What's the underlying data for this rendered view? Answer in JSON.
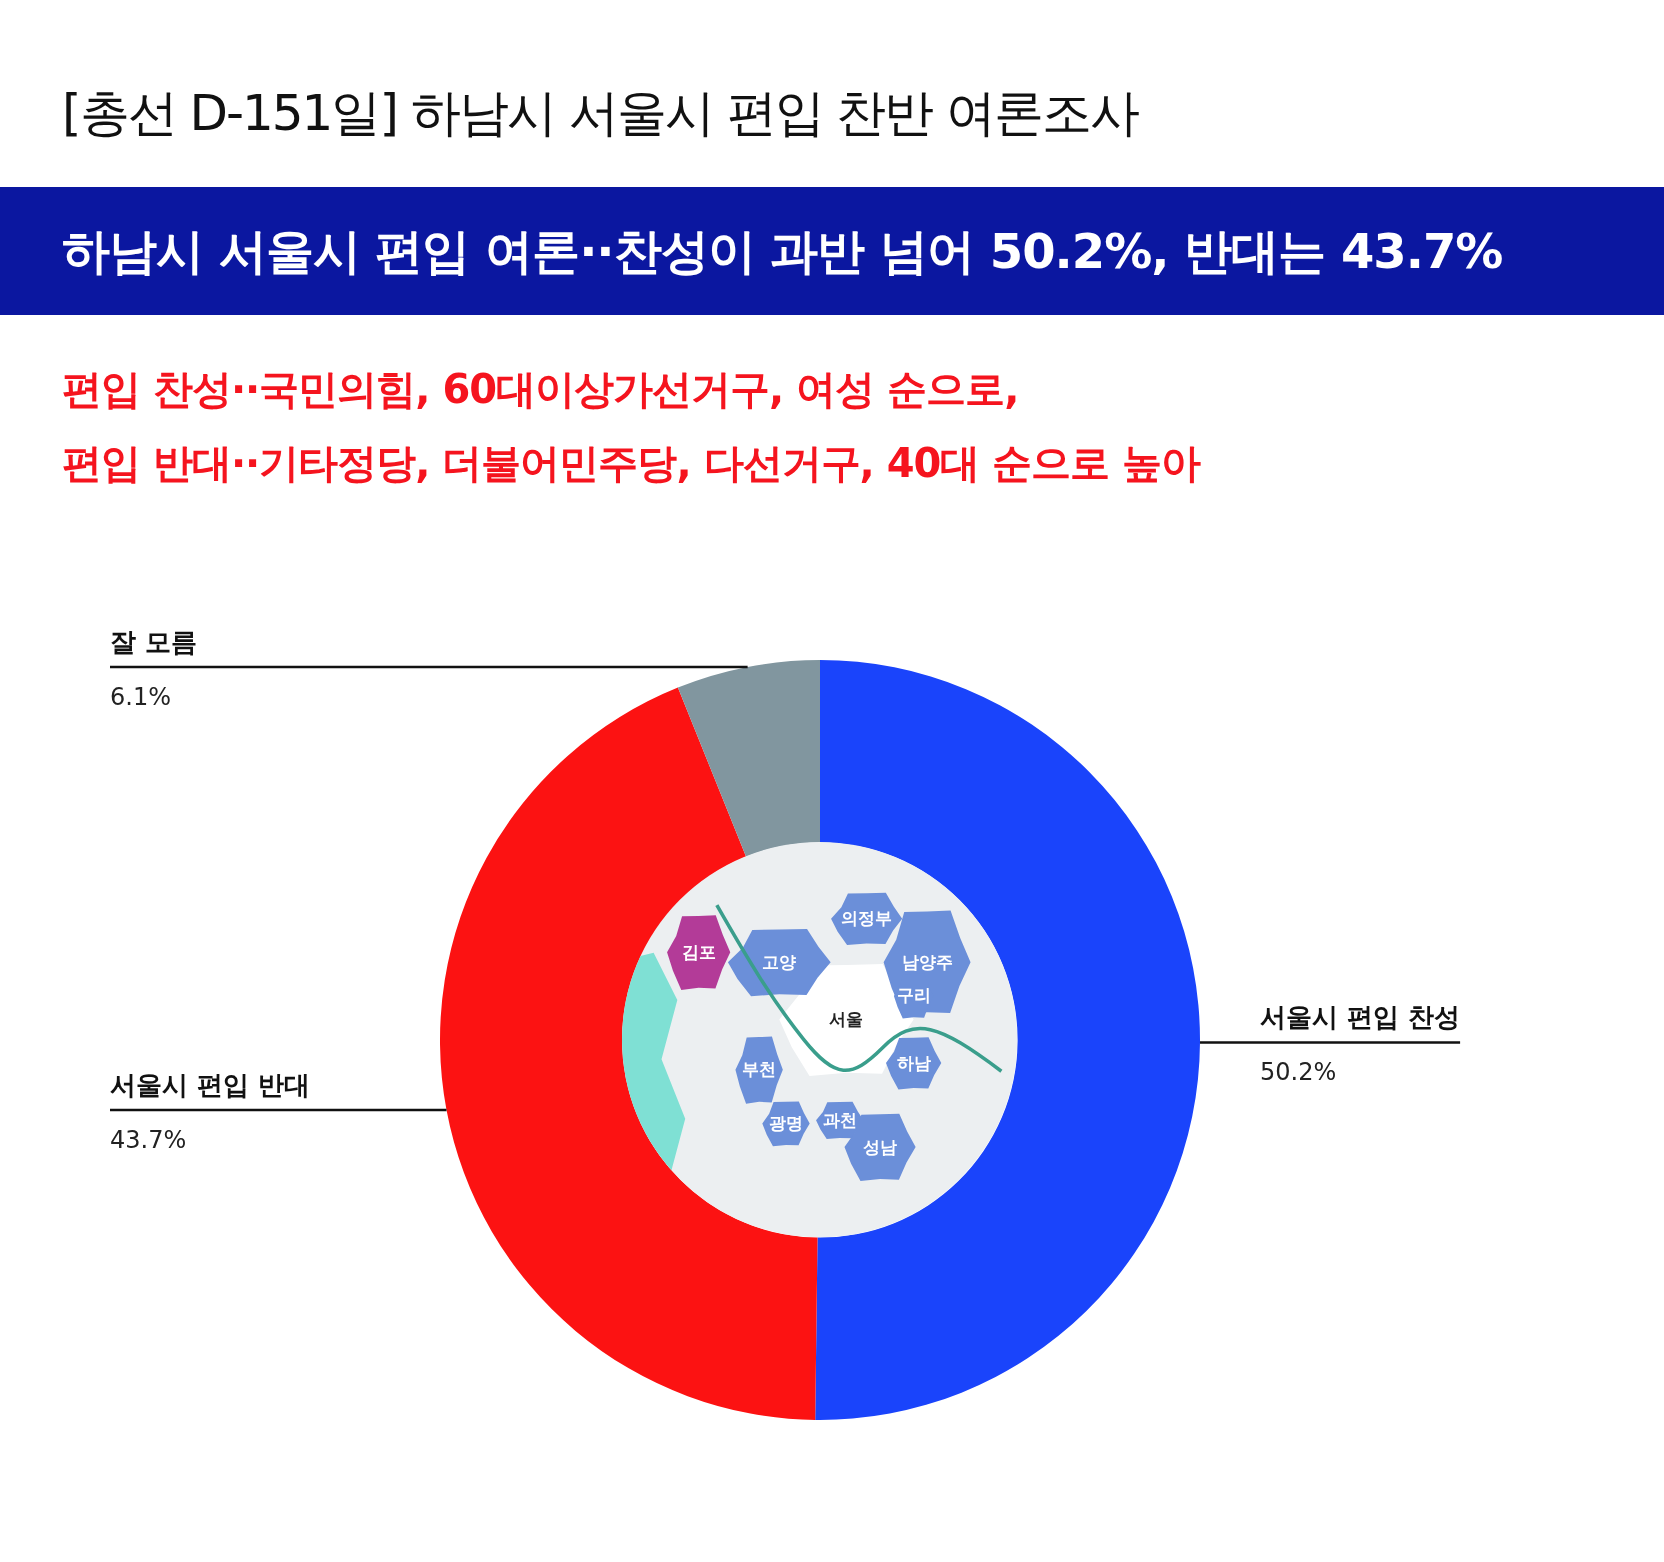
{
  "chart_data": {
    "type": "donut",
    "title": "[총선 D-151일] 하남시 서울시 편입 찬반 여론조사",
    "subtitle": "하남시 서울시 편입 여론··찬성이 과반 넘어 50.2%, 반대는 43.7%",
    "annotations": [
      "편입 찬성··국민의힘, 60대이상가선거구, 여성 순으로,",
      "편입 반대··기타정당, 더불어민주당, 다선거구, 40대 순으로 높아",
      "의정부",
      "남양주",
      "고양",
      "김포",
      "서울",
      "구리",
      "하남",
      "부천",
      "광명",
      "과천",
      "성남"
    ],
    "categories": [
      "서울시 편입 찬성",
      "서울시 편입 반대",
      "잘 모름"
    ],
    "values": [
      50.2,
      43.7,
      6.1
    ],
    "colors": [
      "#1a44fb",
      "#fc1212",
      "#81969f"
    ],
    "value_labels": [
      "50.2%",
      "43.7%",
      "6.1%"
    ]
  }
}
